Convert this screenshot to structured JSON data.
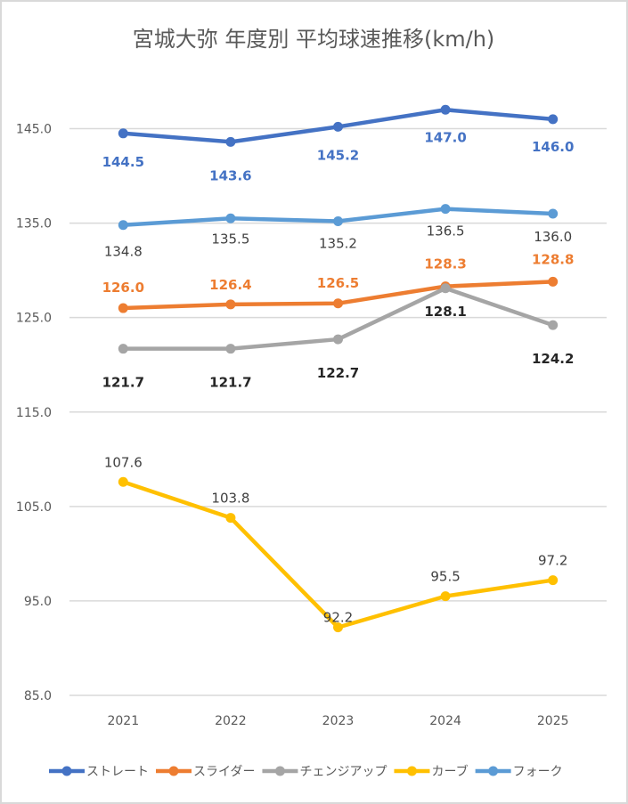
{
  "chart_data": {
    "type": "line",
    "title": "宮城大弥 年度別 平均球速推移(km/h)",
    "xlabel": "",
    "ylabel": "",
    "categories": [
      "2021",
      "2022",
      "2023",
      "2024",
      "2025"
    ],
    "ylim": [
      85.0,
      145.0
    ],
    "yticks": [
      "85.0",
      "95.0",
      "105.0",
      "115.0",
      "125.0",
      "135.0",
      "145.0"
    ],
    "ytick_values": [
      85,
      95,
      105,
      115,
      125,
      135,
      145
    ],
    "grid": true,
    "legend_position": "bottom",
    "series": [
      {
        "name": "ストレート",
        "color": "#4472C4",
        "label_color": "#4472C4",
        "label_bold": true,
        "label_pos": "below",
        "values": [
          144.5,
          143.6,
          145.2,
          147.0,
          146.0
        ],
        "labels": [
          "144.5",
          "143.6",
          "145.2",
          "147.0",
          "146.0"
        ]
      },
      {
        "name": "スライダー",
        "color": "#ED7D31",
        "label_color": "#ED7D31",
        "label_bold": true,
        "label_pos": "above",
        "values": [
          126.0,
          126.4,
          126.5,
          128.3,
          128.8
        ],
        "labels": [
          "126.0",
          "126.4",
          "126.5",
          "128.3",
          "128.8"
        ]
      },
      {
        "name": "チェンジアップ",
        "color": "#A5A5A5",
        "label_color": "#262626",
        "label_bold": true,
        "label_pos": "below",
        "values": [
          121.7,
          121.7,
          122.7,
          128.1,
          124.2
        ],
        "labels": [
          "121.7",
          "121.7",
          "122.7",
          "128.1",
          "124.2"
        ]
      },
      {
        "name": "カーブ",
        "color": "#FFC000",
        "label_color": "#404040",
        "label_bold": false,
        "label_pos": "above",
        "values": [
          107.6,
          103.8,
          92.2,
          95.5,
          97.2
        ],
        "labels": [
          "107.6",
          "103.8",
          "92.2",
          "95.5",
          "97.2"
        ]
      },
      {
        "name": "フォーク",
        "color": "#5B9BD5",
        "label_color": "#404040",
        "label_bold": false,
        "label_pos": "below",
        "values": [
          134.8,
          135.5,
          135.2,
          136.5,
          136.0
        ],
        "labels": [
          "134.8",
          "135.5",
          "135.2",
          "136.5",
          "136.0"
        ]
      }
    ]
  }
}
